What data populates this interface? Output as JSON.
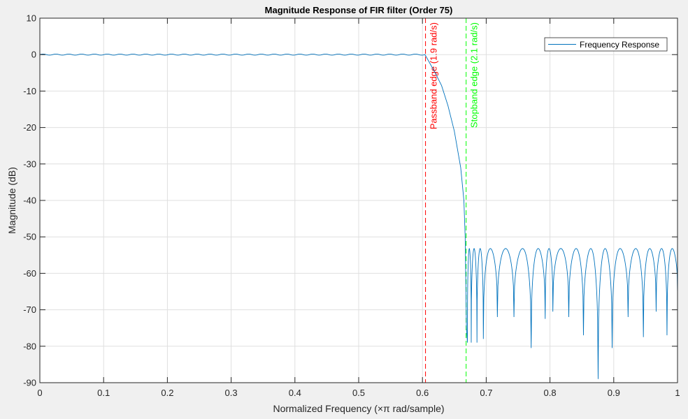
{
  "chart_data": {
    "type": "line",
    "title": "Magnitude Response of FIR filter (Order 75)",
    "xlabel": "Normalized Frequency (×π rad/sample)",
    "ylabel": "Magnitude (dB)",
    "xlim": [
      0,
      1
    ],
    "ylim": [
      -90,
      10
    ],
    "xticks": [
      0,
      0.1,
      0.2,
      0.3,
      0.4,
      0.5,
      0.6,
      0.7,
      0.8,
      0.9,
      1
    ],
    "xtick_labels": [
      "0",
      "0.1",
      "0.2",
      "0.3",
      "0.4",
      "0.5",
      "0.6",
      "0.7",
      "0.8",
      "0.9",
      "1"
    ],
    "yticks": [
      10,
      0,
      -10,
      -20,
      -30,
      -40,
      -50,
      -60,
      -70,
      -80,
      -90
    ],
    "ytick_labels": [
      "10",
      "0",
      "-10",
      "-20",
      "-30",
      "-40",
      "-50",
      "-60",
      "-70",
      "-80",
      "-90"
    ],
    "grid": true,
    "legend": {
      "location": "top-right",
      "entries": [
        "Frequency Response"
      ]
    },
    "series": [
      {
        "name": "Frequency Response",
        "color": "#0072bd",
        "passband": {
          "x_end": 0.604,
          "ripple_db": 0.15,
          "ripples": 30
        },
        "transition": [
          [
            0.604,
            0
          ],
          [
            0.612,
            -2.5
          ],
          [
            0.62,
            -5
          ],
          [
            0.63,
            -8.5
          ],
          [
            0.64,
            -14
          ],
          [
            0.65,
            -21
          ],
          [
            0.66,
            -31
          ],
          [
            0.665,
            -40
          ],
          [
            0.667,
            -50
          ],
          [
            0.669,
            -75
          ],
          [
            0.6705,
            -79
          ]
        ],
        "stopband": {
          "peak_db": -53.2,
          "lobe_edges": [
            0.6705,
            0.6765,
            0.6855,
            0.6955,
            0.7175,
            0.7435,
            0.7705,
            0.7925,
            0.8045,
            0.8295,
            0.8525,
            0.8755,
            0.8975,
            0.9225,
            0.9465,
            0.9665,
            0.9835,
            1.0
          ],
          "null_db": [
            -79,
            -79,
            -79,
            -78,
            -72,
            -72,
            -80.5,
            -72.5,
            -70.5,
            -72,
            -77,
            -89,
            -80.5,
            -72,
            -77.5,
            -70.5,
            -77,
            -65.6
          ]
        }
      }
    ],
    "vlines": [
      {
        "x": 0.6048,
        "label": "Passband edge (1.9 rad/s)",
        "color": "#ff0000",
        "style": "dashed"
      },
      {
        "x": 0.6685,
        "label": "Stopband edge (2.1 rad/s)",
        "color": "#00ff00",
        "style": "dashed"
      }
    ]
  }
}
